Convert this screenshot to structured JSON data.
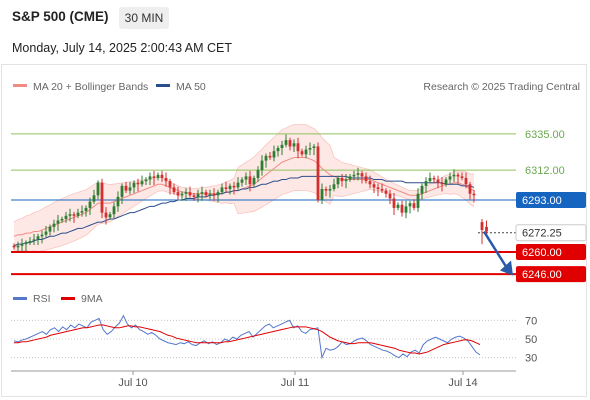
{
  "header": {
    "title": "S&P 500 (CME)",
    "timeframe": "30 MIN",
    "date": "Monday, July 14, 2025 2:00:43 AM CET"
  },
  "legend": {
    "bollinger_label": "MA 20 + Bollinger Bands",
    "ma50_label": "MA 50",
    "credit": "Research © 2025 Trading Central",
    "rsi_label": "RSI",
    "rsi_ma_label": "9MA"
  },
  "colors": {
    "bollinger": "#f08c84",
    "ma50": "#2a4d8c",
    "up_candle": "#2e7d32",
    "down_candle": "#d32f2f",
    "resistance": "#8fc25c",
    "pivot": "#1565c0",
    "support": "#e00000",
    "rsi": "#5577cc",
    "rsi_ma": "#e00000"
  },
  "chart_data": [
    {
      "type": "candlestick",
      "title": "S&P 500 (CME)",
      "timeframe": "30 MIN",
      "x_ticks": [
        "Jul 10",
        "Jul 11",
        "Jul 14"
      ],
      "ylim": [
        6241,
        6359
      ],
      "levels": [
        {
          "value": 6335.0,
          "label": "6335.00",
          "kind": "resistance"
        },
        {
          "value": 6312.0,
          "label": "6312.00",
          "kind": "resistance"
        },
        {
          "value": 6293.0,
          "label": "6293.00",
          "kind": "pivot"
        },
        {
          "value": 6260.0,
          "label": "6260.00",
          "kind": "support"
        },
        {
          "value": 6246.0,
          "label": "6246.00",
          "kind": "support"
        }
      ],
      "last_price": {
        "value": 6272.25,
        "label": "6272.25"
      },
      "forecast_arrow": {
        "from": 6273,
        "to": 6247,
        "direction": "down"
      },
      "close": [
        6263,
        6264,
        6265,
        6266,
        6267,
        6268,
        6270,
        6271,
        6273,
        6276,
        6278,
        6280,
        6281,
        6283,
        6284,
        6283,
        6285,
        6286,
        6288,
        6292,
        6296,
        6304,
        6285,
        6282,
        6284,
        6289,
        6295,
        6302,
        6299,
        6301,
        6304,
        6303,
        6305,
        6306,
        6308,
        6307,
        6309,
        6307,
        6305,
        6301,
        6298,
        6296,
        6297,
        6298,
        6296,
        6295,
        6297,
        6298,
        6296,
        6297,
        6296,
        6298,
        6301,
        6300,
        6302,
        6301,
        6304,
        6306,
        6308,
        6303,
        6307,
        6312,
        6318,
        6321,
        6320,
        6324,
        6326,
        6328,
        6331,
        6327,
        6329,
        6324,
        6322,
        6325,
        6326,
        6327,
        6293,
        6300,
        6299,
        6300,
        6303,
        6307,
        6305,
        6306,
        6308,
        6309,
        6310,
        6308,
        6305,
        6303,
        6301,
        6300,
        6299,
        6297,
        6294,
        6288,
        6290,
        6285,
        6289,
        6291,
        6288,
        6297,
        6302,
        6305,
        6307,
        6306,
        6304,
        6303,
        6306,
        6308,
        6309,
        6308,
        6307,
        6303,
        6297,
        6296
      ],
      "open": [
        6264,
        6263,
        6264,
        6265,
        6266,
        6267,
        6268,
        6270,
        6271,
        6273,
        6276,
        6278,
        6280,
        6281,
        6283,
        6284,
        6283,
        6285,
        6286,
        6288,
        6292,
        6296,
        6304,
        6285,
        6282,
        6284,
        6289,
        6295,
        6302,
        6299,
        6301,
        6304,
        6303,
        6305,
        6306,
        6308,
        6307,
        6309,
        6307,
        6305,
        6301,
        6298,
        6296,
        6297,
        6298,
        6296,
        6295,
        6297,
        6298,
        6296,
        6297,
        6296,
        6298,
        6301,
        6300,
        6302,
        6301,
        6304,
        6306,
        6308,
        6303,
        6307,
        6312,
        6318,
        6321,
        6320,
        6324,
        6326,
        6328,
        6331,
        6327,
        6329,
        6324,
        6322,
        6325,
        6326,
        6327,
        6293,
        6300,
        6299,
        6300,
        6303,
        6307,
        6305,
        6306,
        6308,
        6309,
        6310,
        6308,
        6305,
        6303,
        6301,
        6300,
        6299,
        6297,
        6294,
        6288,
        6290,
        6285,
        6289,
        6291,
        6288,
        6297,
        6302,
        6305,
        6307,
        6306,
        6304,
        6303,
        6306,
        6308,
        6309,
        6308,
        6307,
        6303,
        6297
      ],
      "gap_candles": [
        {
          "open": 6279,
          "close": 6274,
          "high": 6281,
          "low": 6265
        },
        {
          "open": 6276,
          "close": 6273,
          "high": 6280,
          "low": 6271
        }
      ],
      "ma20": [
        6270,
        6271,
        6271,
        6272,
        6272,
        6273,
        6273,
        6274,
        6275,
        6276,
        6277,
        6278,
        6279,
        6280,
        6281,
        6282,
        6283,
        6284,
        6285,
        6287,
        6289,
        6291,
        6291,
        6291,
        6291,
        6292,
        6293,
        6294,
        6295,
        6296,
        6297,
        6298,
        6299,
        6300,
        6301,
        6302,
        6303,
        6303,
        6302,
        6301,
        6300,
        6299,
        6298,
        6298,
        6297,
        6297,
        6297,
        6297,
        6297,
        6297,
        6297,
        6297,
        6297,
        6298,
        6298,
        6299,
        6299,
        6300,
        6301,
        6302,
        6303,
        6305,
        6307,
        6309,
        6311,
        6313,
        6315,
        6317,
        6318,
        6319,
        6320,
        6320,
        6320,
        6320,
        6319,
        6318,
        6316,
        6313,
        6311,
        6309,
        6308,
        6307,
        6306,
        6306,
        6306,
        6306,
        6306,
        6306,
        6306,
        6306,
        6305,
        6304,
        6303,
        6302,
        6301,
        6300,
        6299,
        6298,
        6297,
        6296,
        6296,
        6296,
        6297,
        6298,
        6299,
        6300,
        6301,
        6302,
        6303,
        6303,
        6304,
        6304,
        6303,
        6302,
        6300,
        6299
      ],
      "ma50": [
        6264,
        6265,
        6265,
        6266,
        6266,
        6267,
        6268,
        6268,
        6269,
        6270,
        6270,
        6271,
        6272,
        6272,
        6273,
        6274,
        6275,
        6275,
        6276,
        6277,
        6278,
        6279,
        6279,
        6280,
        6281,
        6281,
        6282,
        6283,
        6284,
        6285,
        6285,
        6286,
        6287,
        6288,
        6289,
        6289,
        6290,
        6291,
        6291,
        6292,
        6292,
        6293,
        6293,
        6294,
        6294,
        6294,
        6295,
        6295,
        6295,
        6296,
        6296,
        6297,
        6297,
        6298,
        6298,
        6299,
        6299,
        6300,
        6300,
        6301,
        6301,
        6302,
        6303,
        6303,
        6304,
        6305,
        6305,
        6306,
        6306,
        6307,
        6307,
        6307,
        6308,
        6308,
        6308,
        6308,
        6308,
        6308,
        6308,
        6308,
        6308,
        6308,
        6308,
        6308,
        6307,
        6307,
        6307,
        6307,
        6307,
        6307,
        6306,
        6306,
        6306,
        6305,
        6305,
        6305,
        6305,
        6305,
        6304,
        6304,
        6304,
        6304,
        6304,
        6304,
        6304,
        6304,
        6304,
        6304,
        6303,
        6303,
        6303,
        6303,
        6302,
        6302,
        6302,
        6301
      ]
    },
    {
      "type": "line",
      "title": "RSI",
      "ylim": [
        20,
        80
      ],
      "y_ticks": [
        70,
        50,
        30
      ],
      "series": [
        {
          "name": "RSI",
          "values": [
            48,
            47,
            49,
            50,
            52,
            54,
            56,
            58,
            55,
            60,
            62,
            58,
            63,
            60,
            65,
            62,
            66,
            64,
            62,
            68,
            70,
            72,
            60,
            55,
            58,
            63,
            67,
            75,
            66,
            62,
            65,
            60,
            58,
            55,
            57,
            54,
            50,
            48,
            46,
            45,
            44,
            46,
            45,
            47,
            44,
            43,
            46,
            48,
            45,
            47,
            44,
            46,
            50,
            48,
            52,
            50,
            54,
            56,
            58,
            52,
            56,
            60,
            64,
            66,
            62,
            64,
            66,
            68,
            70,
            62,
            64,
            58,
            56,
            60,
            61,
            62,
            30,
            40,
            38,
            39,
            42,
            47,
            44,
            45,
            48,
            50,
            51,
            48,
            44,
            42,
            40,
            38,
            37,
            35,
            32,
            30,
            34,
            31,
            36,
            38,
            35,
            44,
            48,
            50,
            52,
            50,
            48,
            46,
            50,
            52,
            53,
            51,
            48,
            42,
            36,
            33
          ]
        },
        {
          "name": "9MA",
          "values": [
            46,
            46,
            47,
            47,
            48,
            49,
            50,
            51,
            52,
            54,
            55,
            56,
            57,
            58,
            59,
            60,
            61,
            62,
            62,
            63,
            64,
            65,
            65,
            64,
            63,
            62,
            62,
            63,
            64,
            64,
            63,
            63,
            62,
            61,
            60,
            59,
            58,
            56,
            54,
            53,
            51,
            50,
            49,
            48,
            47,
            46,
            46,
            46,
            46,
            46,
            46,
            46,
            47,
            47,
            48,
            49,
            50,
            51,
            52,
            53,
            54,
            55,
            56,
            57,
            58,
            59,
            60,
            61,
            62,
            63,
            63,
            63,
            63,
            62,
            61,
            60,
            58,
            55,
            52,
            50,
            48,
            47,
            46,
            45,
            45,
            46,
            46,
            46,
            46,
            45,
            44,
            43,
            42,
            41,
            40,
            38,
            37,
            36,
            35,
            35,
            34,
            35,
            36,
            38,
            40,
            42,
            44,
            45,
            46,
            47,
            48,
            49,
            49,
            48,
            46,
            44
          ]
        }
      ]
    }
  ]
}
